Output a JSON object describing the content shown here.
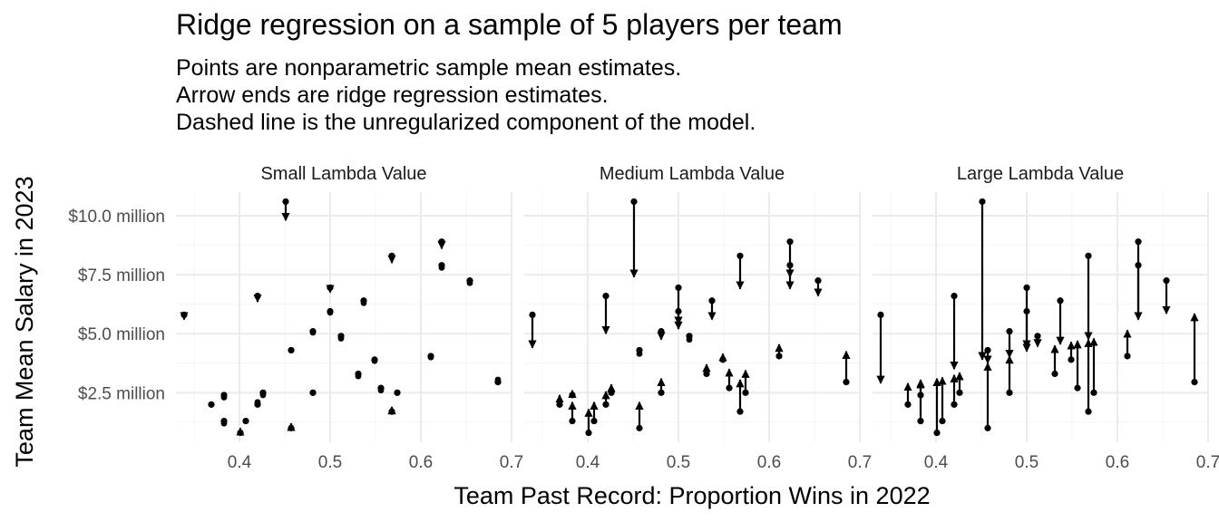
{
  "chart_data": {
    "type": "scatter",
    "title": "Ridge regression on a sample of 5 players per team",
    "subtitle_lines": [
      "Points are nonparametric sample mean estimates.",
      "Arrow ends are ridge regression estimates.",
      "Dashed line is the unregularized component of the model."
    ],
    "xlabel": "Team Past Record: Proportion Wins in 2022",
    "ylabel": "Team Mean Salary in 2023",
    "xlim": [
      0.33,
      0.7
    ],
    "ylim": [
      0.4,
      11.0
    ],
    "x_ticks": [
      0.4,
      0.5,
      0.6,
      0.7
    ],
    "x_tick_labels": [
      "0.4",
      "0.5",
      "0.6",
      "0.7"
    ],
    "y_ticks": [
      2.5,
      5.0,
      7.5,
      10.0
    ],
    "y_tick_labels": [
      "$2.5 million",
      "$5.0 million",
      "$7.5 million",
      "$10.0 million"
    ],
    "grid": true,
    "legend": "none",
    "teams": [
      {
        "x": 0.339,
        "y": 5.8
      },
      {
        "x": 0.369,
        "y": 2.0
      },
      {
        "x": 0.383,
        "y": 2.4
      },
      {
        "x": 0.383,
        "y": 1.3
      },
      {
        "x": 0.401,
        "y": 0.8
      },
      {
        "x": 0.407,
        "y": 1.3
      },
      {
        "x": 0.42,
        "y": 6.6
      },
      {
        "x": 0.42,
        "y": 2.0
      },
      {
        "x": 0.426,
        "y": 2.5
      },
      {
        "x": 0.451,
        "y": 10.6
      },
      {
        "x": 0.457,
        "y": 4.3
      },
      {
        "x": 0.457,
        "y": 1.0
      },
      {
        "x": 0.481,
        "y": 5.1
      },
      {
        "x": 0.481,
        "y": 2.5
      },
      {
        "x": 0.5,
        "y": 6.95
      },
      {
        "x": 0.5,
        "y": 5.95
      },
      {
        "x": 0.512,
        "y": 4.9
      },
      {
        "x": 0.531,
        "y": 3.3
      },
      {
        "x": 0.537,
        "y": 6.4
      },
      {
        "x": 0.549,
        "y": 3.9
      },
      {
        "x": 0.556,
        "y": 2.7
      },
      {
        "x": 0.568,
        "y": 8.3
      },
      {
        "x": 0.568,
        "y": 1.7
      },
      {
        "x": 0.574,
        "y": 2.5
      },
      {
        "x": 0.611,
        "y": 4.05
      },
      {
        "x": 0.623,
        "y": 8.9
      },
      {
        "x": 0.623,
        "y": 7.9
      },
      {
        "x": 0.654,
        "y": 7.25
      },
      {
        "x": 0.685,
        "y": 2.95
      }
    ],
    "panels": [
      {
        "label": "Small Lambda Value",
        "ridge_y": [
          5.6,
          2.0,
          2.3,
          1.2,
          1.0,
          1.3,
          6.35,
          2.1,
          2.4,
          9.8,
          4.3,
          1.2,
          5.05,
          2.5,
          6.75,
          5.9,
          4.8,
          3.2,
          6.3,
          3.85,
          2.6,
          8.0,
          1.9,
          2.5,
          4.0,
          8.6,
          7.8,
          7.15,
          3.05
        ]
      },
      {
        "label": "Medium Lambda Value",
        "ridge_y": [
          4.4,
          2.4,
          2.6,
          2.1,
          1.8,
          2.1,
          5.0,
          2.55,
          2.85,
          7.4,
          4.15,
          2.1,
          4.75,
          3.1,
          5.4,
          5.2,
          4.75,
          3.7,
          5.6,
          4.15,
          3.5,
          6.9,
          3.05,
          3.45,
          4.55,
          7.4,
          6.9,
          6.6,
          4.25
        ]
      },
      {
        "label": "Large Lambda Value",
        "ridge_y": [
          2.9,
          2.9,
          3.0,
          3.05,
          3.1,
          3.15,
          3.5,
          3.25,
          3.35,
          3.9,
          3.75,
          3.75,
          4.0,
          4.05,
          4.25,
          4.4,
          4.45,
          4.5,
          4.55,
          4.65,
          4.7,
          4.75,
          4.75,
          4.8,
          5.15,
          5.6,
          5.6,
          5.85,
          5.85
        ]
      }
    ]
  }
}
